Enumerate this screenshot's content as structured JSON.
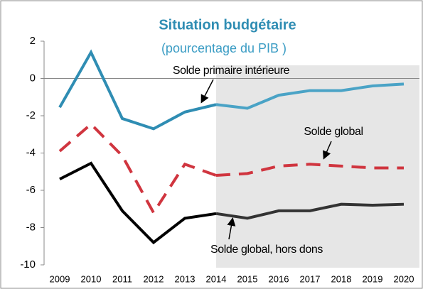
{
  "chart_data": {
    "type": "line",
    "title": "Situation budgétaire",
    "subtitle": "(pourcentage du PIB )",
    "categories": [
      "2009",
      "2010",
      "2011",
      "2012",
      "2013",
      "2014",
      "2015",
      "2016",
      "2017",
      "2018",
      "2019",
      "2020"
    ],
    "series": [
      {
        "name": "Solde primaire intérieure",
        "color": "#2f8db3",
        "projection_color": "#4aa3c6",
        "dash": false,
        "values": [
          -1.55,
          1.4,
          -2.15,
          -2.7,
          -1.8,
          -1.4,
          -1.6,
          -0.9,
          -0.65,
          -0.65,
          -0.4,
          -0.3
        ]
      },
      {
        "name": "Solde global",
        "color": "#d0353f",
        "projection_color": "#d0353f",
        "dash": true,
        "values": [
          -3.9,
          -2.45,
          -4.15,
          -7.2,
          -4.6,
          -5.2,
          -5.1,
          -4.7,
          -4.6,
          -4.7,
          -4.8,
          -4.8
        ]
      },
      {
        "name": "Solde global, hors dons",
        "color": "#000000",
        "projection_color": "#333333",
        "dash": false,
        "values": [
          -5.4,
          -4.55,
          -7.1,
          -8.8,
          -7.5,
          -7.25,
          -7.5,
          -7.1,
          -7.1,
          -6.75,
          -6.8,
          -6.75
        ]
      }
    ],
    "shade": {
      "from": "2014",
      "color": "#e6e6e6"
    },
    "ylim": [
      -10,
      2
    ],
    "yticks": [
      -10,
      -8,
      -6,
      -4,
      -2,
      0,
      2
    ]
  }
}
